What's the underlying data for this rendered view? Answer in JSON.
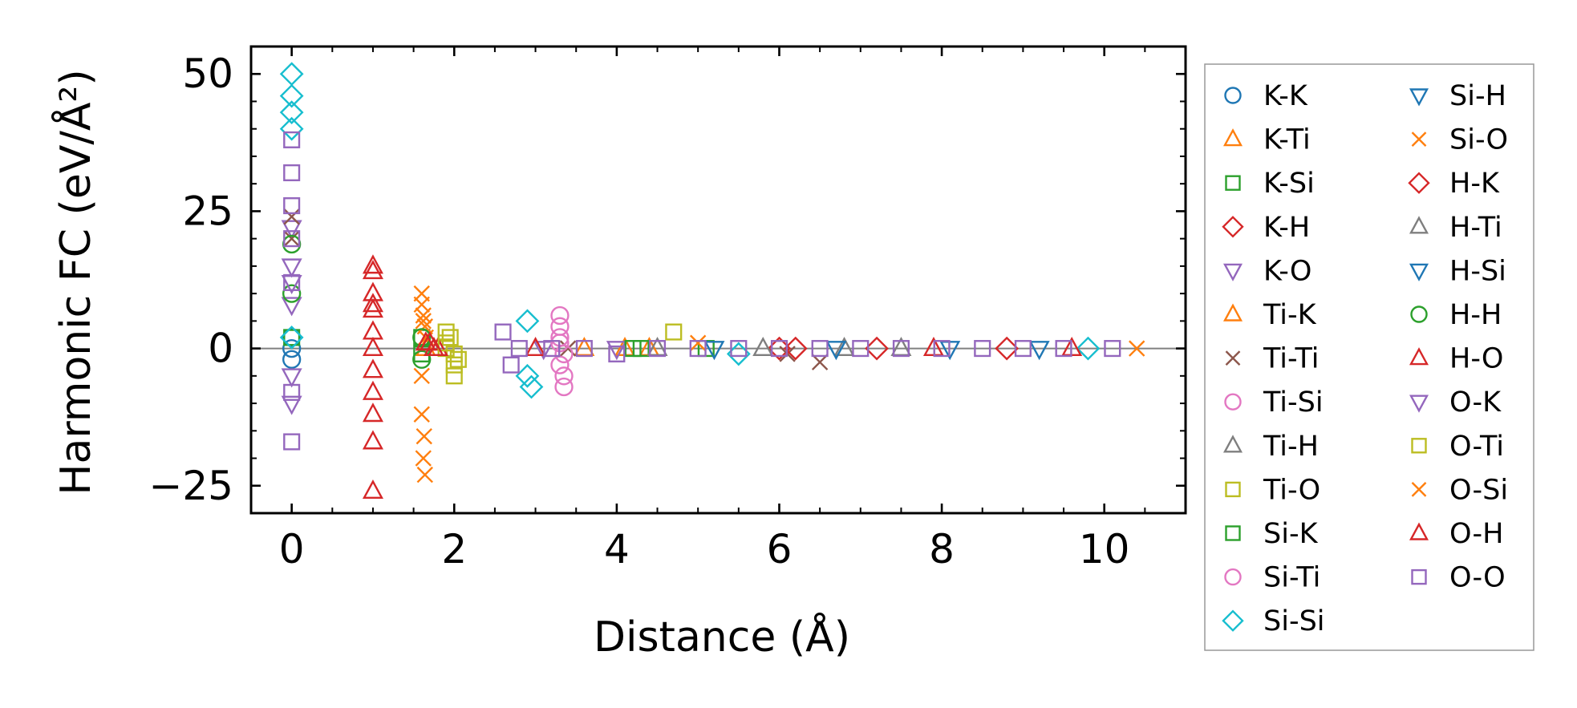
{
  "chart_data": {
    "type": "scatter",
    "xlabel": "Distance (Å)",
    "ylabel": "Harmonic FC (eV/Å²)",
    "xlim": [
      -0.5,
      11.0
    ],
    "ylim": [
      -30,
      55
    ],
    "x_ticks": [
      0,
      2,
      4,
      6,
      8,
      10
    ],
    "x_tick_labels": [
      "0",
      "2",
      "4",
      "6",
      "8",
      "10"
    ],
    "y_ticks": [
      -25,
      0,
      25,
      50
    ],
    "y_tick_labels": [
      "−25",
      "0",
      "25",
      "50"
    ],
    "zero_line": 0,
    "grid": false,
    "legend_placement": "outside-right",
    "legend_columns": 2,
    "series": [
      {
        "name": "K-K",
        "marker": "circle",
        "color": "#1f77b4",
        "x": [
          0,
          0,
          0
        ],
        "y": [
          0,
          2,
          -2
        ]
      },
      {
        "name": "K-Ti",
        "marker": "triangle-up",
        "color": "#ff7f0e",
        "x": [
          4.1,
          4.4
        ],
        "y": [
          0,
          0
        ]
      },
      {
        "name": "K-Si",
        "marker": "square",
        "color": "#2ca02c",
        "x": [
          0,
          4.3,
          5.1
        ],
        "y": [
          2,
          0,
          0
        ]
      },
      {
        "name": "K-H",
        "marker": "diamond",
        "color": "#d62728",
        "x": [
          6.0,
          7.2
        ],
        "y": [
          0,
          0
        ]
      },
      {
        "name": "K-O",
        "marker": "triangle-down",
        "color": "#9467bd",
        "x": [
          0,
          0,
          0,
          3.1,
          4.0
        ],
        "y": [
          8,
          15,
          22,
          0,
          0
        ]
      },
      {
        "name": "Ti-K",
        "marker": "triangle-up",
        "color": "#ff7f0e",
        "x": [
          1.65,
          3.6
        ],
        "y": [
          0,
          0
        ]
      },
      {
        "name": "Ti-Ti",
        "marker": "x",
        "color": "#8c564b",
        "x": [
          0,
          0,
          3.4,
          6.1,
          6.5
        ],
        "y": [
          20,
          24,
          0,
          -1,
          -2.5
        ]
      },
      {
        "name": "Ti-Si",
        "marker": "circle",
        "color": "#e377c2",
        "x": [
          3.3,
          3.3,
          3.3,
          3.3,
          3.35,
          3.35
        ],
        "y": [
          6,
          4,
          2,
          -3,
          -5,
          -7
        ]
      },
      {
        "name": "Ti-H",
        "marker": "triangle-up",
        "color": "#7f7f7f",
        "x": [
          4.5,
          6.8
        ],
        "y": [
          0,
          0
        ]
      },
      {
        "name": "Ti-O",
        "marker": "square",
        "color": "#bcbd22",
        "x": [
          1.9,
          1.9,
          2.0,
          2.0,
          1.95,
          2.0,
          4.7
        ],
        "y": [
          3,
          0,
          -3,
          -5,
          2,
          -1,
          3
        ]
      },
      {
        "name": "Si-K",
        "marker": "square",
        "color": "#2ca02c",
        "x": [
          1.6,
          1.6,
          4.2
        ],
        "y": [
          2,
          -1,
          0
        ]
      },
      {
        "name": "Si-Ti",
        "marker": "circle",
        "color": "#e377c2",
        "x": [
          3.3,
          3.35
        ],
        "y": [
          1,
          -1
        ]
      },
      {
        "name": "Si-Si",
        "marker": "diamond",
        "color": "#17becf",
        "x": [
          0,
          0,
          0,
          0,
          0,
          2.9,
          2.9,
          2.95,
          5.5,
          9.8
        ],
        "y": [
          50,
          46,
          43,
          40,
          2,
          5,
          -5,
          -7,
          -1,
          0
        ]
      },
      {
        "name": "Si-H",
        "marker": "triangle-down",
        "color": "#1f77b4",
        "x": [
          5.2,
          8.1
        ],
        "y": [
          0,
          0
        ]
      },
      {
        "name": "Si-O",
        "marker": "x",
        "color": "#ff7f0e",
        "x": [
          1.6,
          1.6,
          1.62,
          1.64,
          1.65,
          1.6,
          1.63,
          1.62,
          1.64,
          5.0,
          10.4
        ],
        "y": [
          10,
          8,
          6,
          4,
          2,
          -12,
          -16,
          -20,
          -23,
          1,
          0
        ]
      },
      {
        "name": "H-K",
        "marker": "diamond",
        "color": "#d62728",
        "x": [
          6.2,
          8.8
        ],
        "y": [
          0,
          0
        ]
      },
      {
        "name": "H-Ti",
        "marker": "triangle-up",
        "color": "#7f7f7f",
        "x": [
          5.8,
          7.5
        ],
        "y": [
          0,
          0
        ]
      },
      {
        "name": "H-Si",
        "marker": "triangle-down",
        "color": "#1f77b4",
        "x": [
          6.7,
          9.2
        ],
        "y": [
          0,
          0
        ]
      },
      {
        "name": "H-H",
        "marker": "circle",
        "color": "#2ca02c",
        "x": [
          0,
          0,
          1.6,
          1.6
        ],
        "y": [
          19,
          10,
          2,
          -2
        ]
      },
      {
        "name": "H-O",
        "marker": "triangle-up",
        "color": "#d62728",
        "x": [
          1.0,
          1.0,
          1.0,
          1.0,
          1.0,
          1.0,
          1.0,
          1.0,
          1.0,
          1.0,
          1.0,
          1.0,
          1.8,
          1.7,
          3.0,
          7.9,
          9.6
        ],
        "y": [
          15,
          14,
          10,
          8,
          7,
          3,
          0,
          -4,
          -8,
          -12,
          -17,
          -26,
          0,
          1,
          0,
          0,
          0
        ]
      },
      {
        "name": "O-K",
        "marker": "triangle-down",
        "color": "#9467bd",
        "x": [
          0,
          0,
          0
        ],
        "y": [
          -5,
          -10,
          12
        ]
      },
      {
        "name": "O-Ti",
        "marker": "square",
        "color": "#bcbd22",
        "x": [
          1.9,
          2.05
        ],
        "y": [
          1,
          -2
        ]
      },
      {
        "name": "O-Si",
        "marker": "x",
        "color": "#ff7f0e",
        "x": [
          1.6,
          1.62
        ],
        "y": [
          -5,
          5
        ]
      },
      {
        "name": "O-H",
        "marker": "triangle-up",
        "color": "#d62728",
        "x": [
          1.65,
          1.75
        ],
        "y": [
          1,
          0
        ]
      },
      {
        "name": "O-O",
        "marker": "square",
        "color": "#9467bd",
        "x": [
          0,
          0,
          0,
          0,
          0,
          0,
          0,
          2.6,
          2.7,
          2.8,
          3.2,
          3.6,
          4.0,
          4.5,
          5.0,
          5.5,
          6.0,
          6.5,
          7.0,
          7.5,
          8.0,
          8.5,
          9.0,
          9.5,
          10.1
        ],
        "y": [
          38,
          32,
          26,
          20,
          12,
          -8,
          -17,
          3,
          -3,
          0,
          0,
          0,
          -1,
          0,
          0,
          0,
          0,
          0,
          0,
          0,
          0,
          0,
          0,
          0,
          0
        ]
      }
    ]
  }
}
